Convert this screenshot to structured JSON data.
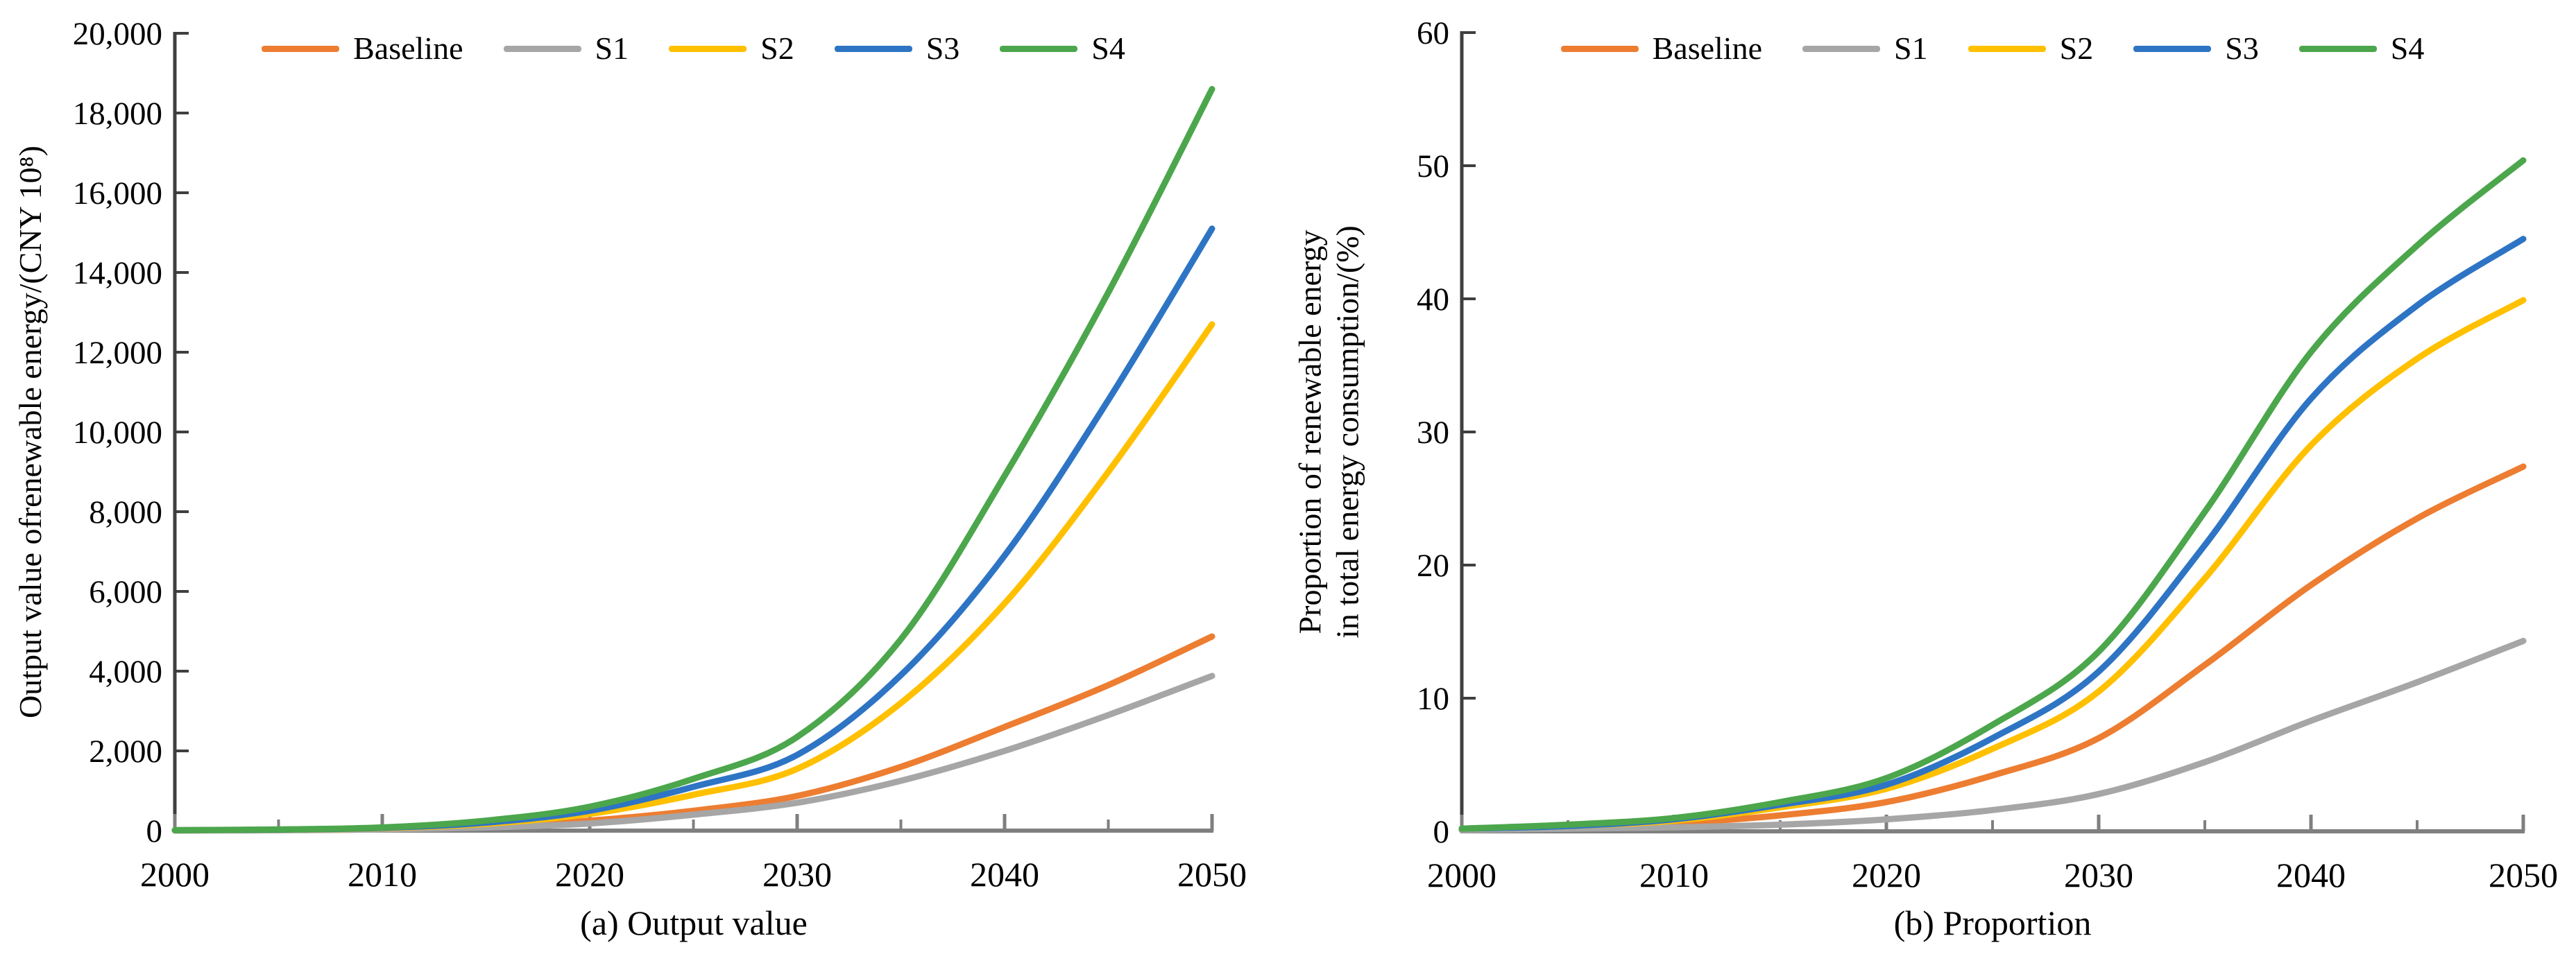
{
  "page": {
    "background": "#ffffff"
  },
  "legend": {
    "items": [
      {
        "label": "Baseline",
        "color": "#ED7D31"
      },
      {
        "label": "S1",
        "color": "#A6A6A6"
      },
      {
        "label": "S2",
        "color": "#FFC000"
      },
      {
        "label": "S3",
        "color": "#2E74C4"
      },
      {
        "label": "S4",
        "color": "#4CA64C"
      }
    ]
  },
  "axis_style": {
    "y_axis_color": "#3F3F3F",
    "x_axis_color": "#7F7F7F",
    "tick_label_color": "#000000"
  },
  "chart_data": [
    {
      "type": "line",
      "panel": "a",
      "caption": "(a) Output value",
      "y_axis_title": "Output value ofrenewable energy/(CNY 10⁸)",
      "xlabel": "",
      "x": [
        2000,
        2005,
        2010,
        2015,
        2020,
        2025,
        2030,
        2035,
        2040,
        2045,
        2050
      ],
      "xlim": [
        2000,
        2050
      ],
      "ylim": [
        0,
        20000
      ],
      "y_tick_step": 2000,
      "x_tick_major_step": 10,
      "x_tick_minor_step": 5,
      "grid": false,
      "legend_position": "top-center",
      "series": [
        {
          "name": "Baseline",
          "color": "#ED7D31",
          "values": [
            5,
            15,
            40,
            100,
            250,
            500,
            870,
            1600,
            2600,
            3650,
            4870
          ]
        },
        {
          "name": "S1",
          "color": "#A6A6A6",
          "values": [
            5,
            10,
            30,
            80,
            180,
            400,
            700,
            1250,
            2000,
            2900,
            3880
          ]
        },
        {
          "name": "S2",
          "color": "#FFC000",
          "values": [
            10,
            20,
            60,
            170,
            420,
            900,
            1550,
            3200,
            5700,
            9000,
            12700
          ]
        },
        {
          "name": "S3",
          "color": "#2E74C4",
          "values": [
            10,
            25,
            70,
            200,
            500,
            1100,
            1900,
            3900,
            6900,
            10800,
            15100
          ]
        },
        {
          "name": "S4",
          "color": "#4CA64C",
          "values": [
            10,
            30,
            80,
            250,
            600,
            1300,
            2350,
            4800,
            8900,
            13500,
            18600
          ]
        }
      ]
    },
    {
      "type": "line",
      "panel": "b",
      "caption": "(b) Proportion",
      "y_axis_title": "Proportion of renewable energy\nin total energy consumption/(%)",
      "xlabel": "",
      "x": [
        2000,
        2005,
        2010,
        2015,
        2020,
        2025,
        2030,
        2035,
        2040,
        2045,
        2050
      ],
      "xlim": [
        2000,
        2050
      ],
      "ylim": [
        0,
        60
      ],
      "y_tick_step": 10,
      "x_tick_major_step": 10,
      "x_tick_minor_step": 5,
      "grid": false,
      "legend_position": "top-center",
      "series": [
        {
          "name": "Baseline",
          "color": "#ED7D31",
          "values": [
            0.1,
            0.3,
            0.6,
            1.2,
            2.2,
            4.2,
            7.0,
            12.5,
            18.5,
            23.5,
            27.4
          ]
        },
        {
          "name": "S1",
          "color": "#A6A6A6",
          "values": [
            0.1,
            0.2,
            0.3,
            0.5,
            0.9,
            1.6,
            2.8,
            5.2,
            8.3,
            11.2,
            14.3
          ]
        },
        {
          "name": "S2",
          "color": "#FFC000",
          "values": [
            0.2,
            0.4,
            0.8,
            1.8,
            3.2,
            6.2,
            10.5,
            19.0,
            29.0,
            35.5,
            39.9
          ]
        },
        {
          "name": "S3",
          "color": "#2E74C4",
          "values": [
            0.2,
            0.4,
            0.9,
            2.0,
            3.5,
            7.0,
            12.0,
            21.5,
            32.5,
            39.5,
            44.5
          ]
        },
        {
          "name": "S4",
          "color": "#4CA64C",
          "values": [
            0.2,
            0.5,
            1.0,
            2.2,
            4.0,
            8.0,
            13.5,
            24.0,
            36.0,
            44.0,
            50.4
          ]
        }
      ]
    }
  ]
}
